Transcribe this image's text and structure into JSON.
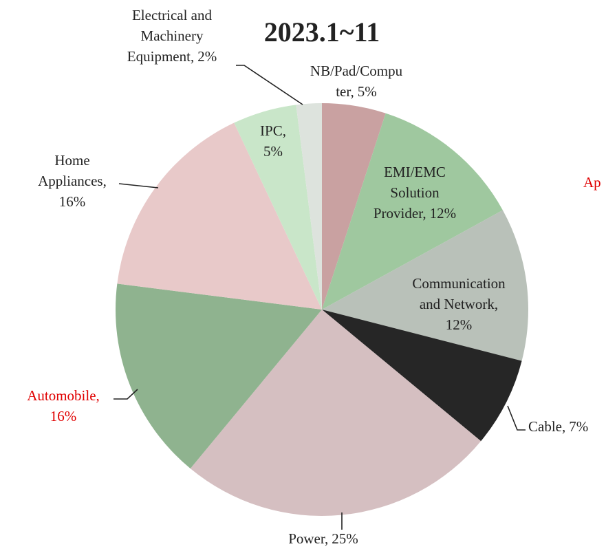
{
  "chart_data": {
    "type": "pie",
    "title": "2023.1~11",
    "categories": [
      "NB/Pad/Computer,",
      "EMI/EMC Solution Provider,",
      "Communication and Network,",
      "Cable,",
      "Power,",
      "Automobile,",
      "Home Appliances,",
      "IPC,",
      "Electrical and Machinery Equipment,"
    ],
    "values": [
      5,
      12,
      12,
      7,
      25,
      16,
      16,
      5,
      2
    ],
    "value_labels": [
      "5%",
      "12%",
      "12%",
      "7%",
      "25%",
      "16%",
      "16%",
      "5%",
      "2%"
    ],
    "colors": [
      "#c9a1a1",
      "#9fc89f",
      "#b9c1b9",
      "#262626",
      "#d5bfc1",
      "#8fb38f",
      "#e8c9c9",
      "#c9e6c9",
      "#dde3dd"
    ],
    "label_colors": [
      "#222222",
      "#222222",
      "#222222",
      "#222222",
      "#222222",
      "#e00000",
      "#222222",
      "#222222",
      "#222222"
    ],
    "annotation": "Ap",
    "annotation_color": "#e00000"
  }
}
